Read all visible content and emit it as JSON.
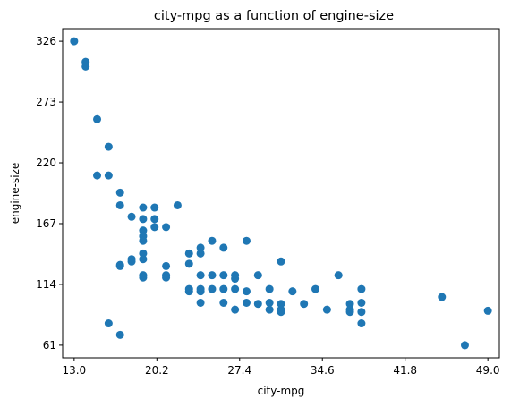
{
  "chart_data": {
    "type": "scatter",
    "title": "city-mpg as a function of engine-size",
    "xlabel": "city-mpg",
    "ylabel": "engine-size",
    "xlim": [
      12.0,
      50.0
    ],
    "ylim": [
      50,
      337
    ],
    "xticks": [
      "13.0",
      "20.2",
      "27.4",
      "34.6",
      "41.8",
      "49.0"
    ],
    "yticks": [
      "61",
      "114",
      "167",
      "220",
      "273",
      "326"
    ],
    "grid": false,
    "marker_color": "#1f77b4",
    "points": [
      {
        "x": 13,
        "y": 326
      },
      {
        "x": 14,
        "y": 304
      },
      {
        "x": 14,
        "y": 308
      },
      {
        "x": 15,
        "y": 258
      },
      {
        "x": 15,
        "y": 209
      },
      {
        "x": 16,
        "y": 234
      },
      {
        "x": 16,
        "y": 209
      },
      {
        "x": 16,
        "y": 80
      },
      {
        "x": 17,
        "y": 194
      },
      {
        "x": 17,
        "y": 183
      },
      {
        "x": 17,
        "y": 131
      },
      {
        "x": 17,
        "y": 130
      },
      {
        "x": 17,
        "y": 70
      },
      {
        "x": 18,
        "y": 173
      },
      {
        "x": 18,
        "y": 136
      },
      {
        "x": 18,
        "y": 134
      },
      {
        "x": 19,
        "y": 181
      },
      {
        "x": 19,
        "y": 171
      },
      {
        "x": 19,
        "y": 161
      },
      {
        "x": 19,
        "y": 156
      },
      {
        "x": 19,
        "y": 152
      },
      {
        "x": 19,
        "y": 141
      },
      {
        "x": 19,
        "y": 136
      },
      {
        "x": 19,
        "y": 122
      },
      {
        "x": 19,
        "y": 120
      },
      {
        "x": 20,
        "y": 181
      },
      {
        "x": 20,
        "y": 171
      },
      {
        "x": 20,
        "y": 164
      },
      {
        "x": 21,
        "y": 164
      },
      {
        "x": 21,
        "y": 130
      },
      {
        "x": 21,
        "y": 122
      },
      {
        "x": 21,
        "y": 120
      },
      {
        "x": 22,
        "y": 183
      },
      {
        "x": 23,
        "y": 141
      },
      {
        "x": 23,
        "y": 132
      },
      {
        "x": 23,
        "y": 110
      },
      {
        "x": 23,
        "y": 108
      },
      {
        "x": 24,
        "y": 146
      },
      {
        "x": 24,
        "y": 141
      },
      {
        "x": 24,
        "y": 122
      },
      {
        "x": 24,
        "y": 110
      },
      {
        "x": 24,
        "y": 108
      },
      {
        "x": 24,
        "y": 98
      },
      {
        "x": 25,
        "y": 152
      },
      {
        "x": 25,
        "y": 122
      },
      {
        "x": 25,
        "y": 110
      },
      {
        "x": 26,
        "y": 146
      },
      {
        "x": 26,
        "y": 122
      },
      {
        "x": 26,
        "y": 110
      },
      {
        "x": 26,
        "y": 98
      },
      {
        "x": 27,
        "y": 122
      },
      {
        "x": 27,
        "y": 119
      },
      {
        "x": 27,
        "y": 110
      },
      {
        "x": 27,
        "y": 92
      },
      {
        "x": 28,
        "y": 152
      },
      {
        "x": 28,
        "y": 108
      },
      {
        "x": 28,
        "y": 98
      },
      {
        "x": 29,
        "y": 122
      },
      {
        "x": 29,
        "y": 97
      },
      {
        "x": 30,
        "y": 110
      },
      {
        "x": 30,
        "y": 98
      },
      {
        "x": 30,
        "y": 92
      },
      {
        "x": 31,
        "y": 134
      },
      {
        "x": 31,
        "y": 97
      },
      {
        "x": 31,
        "y": 92
      },
      {
        "x": 31,
        "y": 90
      },
      {
        "x": 32,
        "y": 108
      },
      {
        "x": 33,
        "y": 97
      },
      {
        "x": 34,
        "y": 110
      },
      {
        "x": 35,
        "y": 92
      },
      {
        "x": 36,
        "y": 122
      },
      {
        "x": 37,
        "y": 97
      },
      {
        "x": 37,
        "y": 92
      },
      {
        "x": 37,
        "y": 90
      },
      {
        "x": 38,
        "y": 110
      },
      {
        "x": 38,
        "y": 98
      },
      {
        "x": 38,
        "y": 90
      },
      {
        "x": 38,
        "y": 80
      },
      {
        "x": 45,
        "y": 103
      },
      {
        "x": 47,
        "y": 61
      },
      {
        "x": 49,
        "y": 91
      }
    ]
  }
}
